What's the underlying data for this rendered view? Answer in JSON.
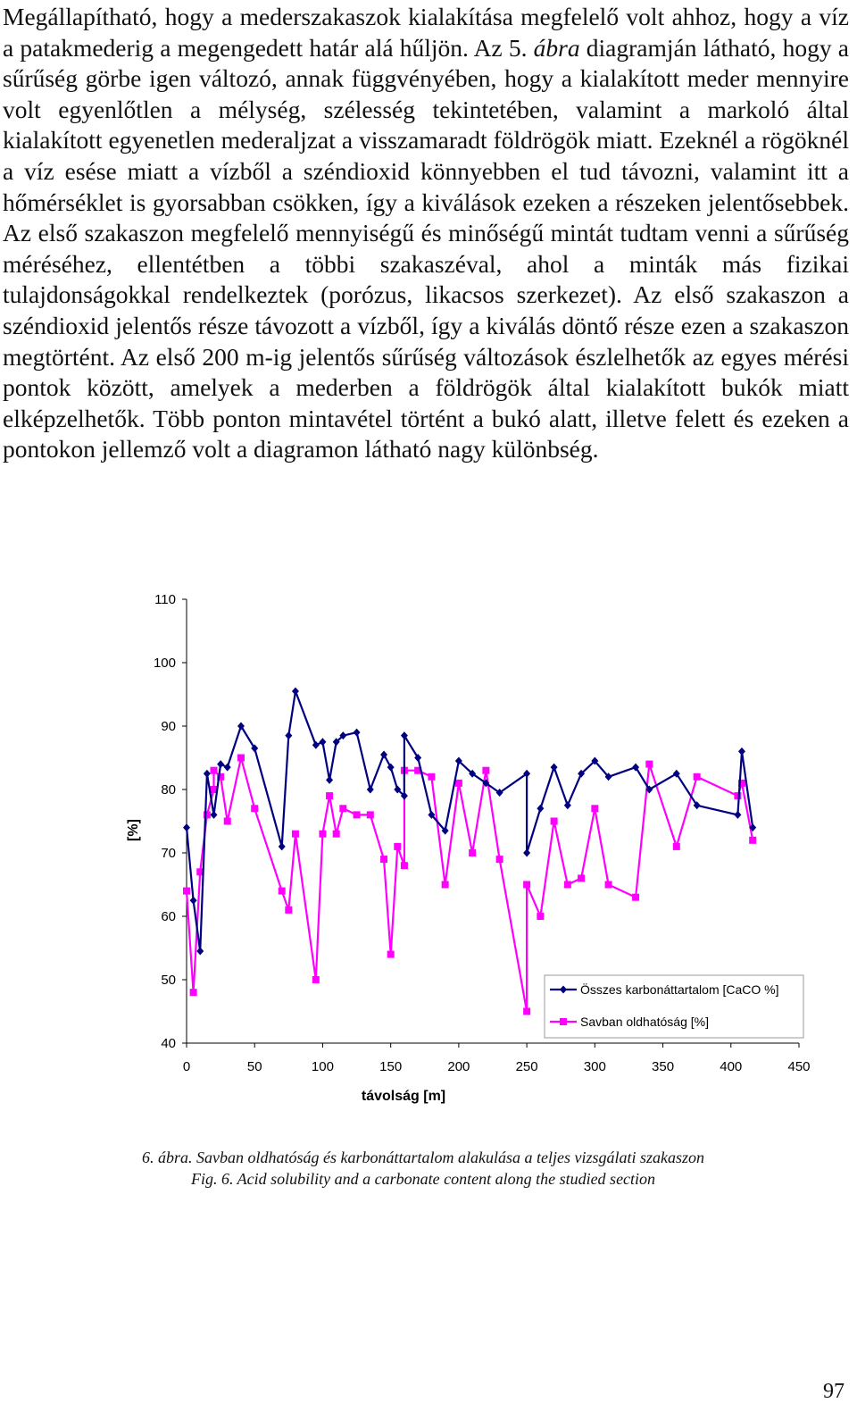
{
  "body_text": {
    "part1": "Megállapítható, hogy a mederszakaszok kialakítása megfelelő volt ahhoz, hogy a víz a patakmederig a megengedett határ alá hűljön. Az 5. ",
    "part1_emph": "ábra",
    "part2": " diagramján látható, hogy a sűrűség görbe igen változó, annak függvényében, hogy a kialakított meder mennyire volt egyenlőtlen a mélység, szélesség tekintetében, valamint a markoló által kialakított egyenetlen mederaljzat a visszamaradt földrögök miatt. Ezeknél a rögöknél a víz esése miatt a vízből a széndioxid könnyebben el tud távozni, valamint itt a hőmérséklet is gyorsabban csökken, így a kiválások ezeken a részeken jelentősebbek. Az első szakaszon megfelelő mennyiségű és minőségű mintát tudtam venni a sűrűség méréséhez, ellentétben a többi szakaszéval, ahol a minták más fizikai tulajdonságokkal rendelkeztek (porózus, likacsos szerkezet). Az első szakaszon a széndioxid jelentős része távozott a vízből, így a kiválás döntő része ezen a szakaszon megtörtént. Az első 200 m-ig jelentős sűrűség változások észlelhetők az egyes mérési pontok között, amelyek a mederben a földrögök által kialakított bukók miatt elképzelhetők. Több ponton mintavétel történt a bukó alatt, illetve felett és ezeken a pontokon jellemző volt a diagramon látható nagy különbség."
  },
  "chart_data": {
    "type": "line",
    "xlabel": "távolság [m]",
    "ylabel": "[%]",
    "xlim": [
      0,
      450
    ],
    "ylim": [
      40,
      110
    ],
    "x_ticks": [
      0,
      50,
      100,
      150,
      200,
      250,
      300,
      350,
      400,
      450
    ],
    "y_ticks": [
      40,
      50,
      60,
      70,
      80,
      90,
      100,
      110
    ],
    "grid": false,
    "legend_position": "bottom-right",
    "series": [
      {
        "name": "Összes karbonáttartalom [CaCO %]",
        "color": "#000080",
        "marker": "diamond",
        "points": [
          [
            0,
            74
          ],
          [
            5,
            62.5
          ],
          [
            10,
            54.5
          ],
          [
            15,
            82.5
          ],
          [
            20,
            76
          ],
          [
            25,
            84
          ],
          [
            30,
            83.5
          ],
          [
            40,
            90
          ],
          [
            50,
            86.5
          ],
          [
            70,
            71
          ],
          [
            75,
            88.5
          ],
          [
            80,
            95.5
          ],
          [
            95,
            87
          ],
          [
            100,
            87.5
          ],
          [
            105,
            81.5
          ],
          [
            110,
            87.5
          ],
          [
            115,
            88.5
          ],
          [
            125,
            89
          ],
          [
            135,
            80
          ],
          [
            145,
            85.5
          ],
          [
            150,
            83.5
          ],
          [
            155,
            80
          ],
          [
            160,
            79
          ],
          [
            160,
            88.5
          ],
          [
            170,
            85
          ],
          [
            180,
            76
          ],
          [
            190,
            73.5
          ],
          [
            200,
            84.5
          ],
          [
            210,
            82.5
          ],
          [
            220,
            81
          ],
          [
            230,
            79.5
          ],
          [
            250,
            82.5
          ],
          [
            250,
            70
          ],
          [
            260,
            77
          ],
          [
            270,
            83.5
          ],
          [
            280,
            77.5
          ],
          [
            290,
            82.5
          ],
          [
            300,
            84.5
          ],
          [
            310,
            82
          ],
          [
            330,
            83.5
          ],
          [
            340,
            80
          ],
          [
            360,
            82.5
          ],
          [
            375,
            77.5
          ],
          [
            405,
            76
          ],
          [
            408,
            86
          ],
          [
            416,
            74
          ]
        ]
      },
      {
        "name": "Savban oldhatóság [%]",
        "color": "#ff00ff",
        "marker": "square",
        "points": [
          [
            0,
            64
          ],
          [
            5,
            48
          ],
          [
            10,
            67
          ],
          [
            15,
            76
          ],
          [
            20,
            80
          ],
          [
            20,
            83
          ],
          [
            25,
            82
          ],
          [
            30,
            75
          ],
          [
            40,
            85
          ],
          [
            50,
            77
          ],
          [
            70,
            64
          ],
          [
            75,
            61
          ],
          [
            80,
            73
          ],
          [
            95,
            50
          ],
          [
            100,
            73
          ],
          [
            105,
            79
          ],
          [
            110,
            73
          ],
          [
            115,
            77
          ],
          [
            125,
            76
          ],
          [
            135,
            76
          ],
          [
            145,
            69
          ],
          [
            150,
            54
          ],
          [
            155,
            71
          ],
          [
            160,
            68
          ],
          [
            160,
            83
          ],
          [
            170,
            83
          ],
          [
            180,
            82
          ],
          [
            190,
            65
          ],
          [
            200,
            81
          ],
          [
            210,
            70
          ],
          [
            220,
            83
          ],
          [
            230,
            69
          ],
          [
            250,
            45
          ],
          [
            250,
            65
          ],
          [
            260,
            60
          ],
          [
            270,
            75
          ],
          [
            280,
            65
          ],
          [
            290,
            66
          ],
          [
            300,
            77
          ],
          [
            310,
            65
          ],
          [
            330,
            63
          ],
          [
            340,
            84
          ],
          [
            360,
            71
          ],
          [
            375,
            82
          ],
          [
            405,
            79
          ],
          [
            408,
            81
          ],
          [
            416,
            72
          ]
        ]
      }
    ]
  },
  "caption": {
    "hu": "6. ábra. Savban oldhatóság és karbonáttartalom alakulása a teljes vizsgálati szakaszon",
    "en": "Fig. 6. Acid solubility and a carbonate content along the studied section"
  },
  "page_number": "97"
}
